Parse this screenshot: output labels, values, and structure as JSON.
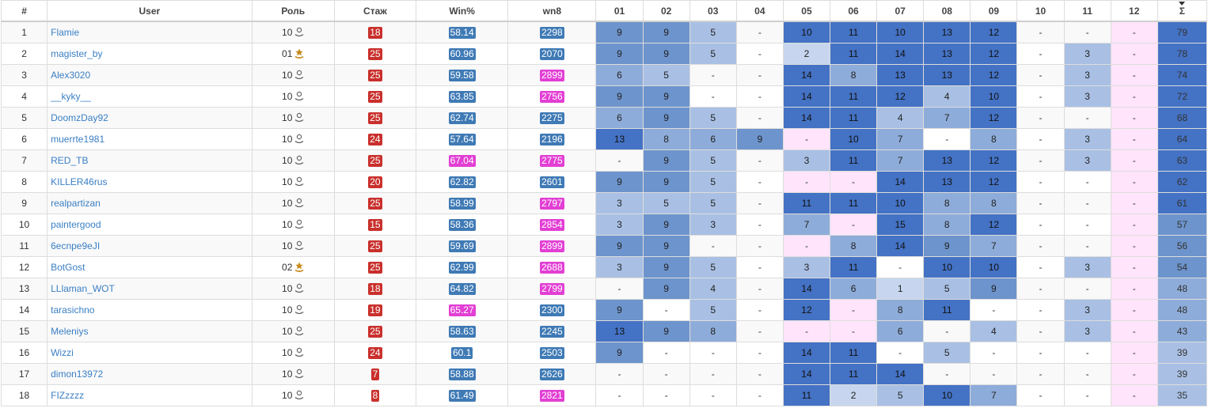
{
  "headers": [
    "#",
    "User",
    "Роль",
    "Стаж",
    "Win%",
    "wn8",
    "01",
    "02",
    "03",
    "04",
    "05",
    "06",
    "07",
    "08",
    "09",
    "10",
    "11",
    "12",
    "Σ"
  ],
  "colors": {
    "stazh_red": "#c9302c",
    "win_blue": "#3f7ab5",
    "win_pink": "#e23fd4",
    "wn8_blue": "#3f7ab5",
    "wn8_pink": "#e23fd4",
    "rank_gold": "#c68a1a",
    "pink_cell": "#ffe4fb",
    "blue_scale": [
      "#ffffff",
      "#c7d6ee",
      "#a9c0e4",
      "#8eacd9",
      "#6d94cc",
      "#4472c4"
    ]
  },
  "rows": [
    {
      "num": "1",
      "user": "Flamie",
      "role": "10",
      "role_icon": "soldier-icon",
      "stazh": "18",
      "win": "58.14",
      "win_hl": false,
      "wn8": "2298",
      "wn8_hl": false,
      "cells": [
        "9",
        "9",
        "5",
        "-",
        "10",
        "11",
        "10",
        "13",
        "12",
        "-",
        "-",
        "-"
      ],
      "total": "79"
    },
    {
      "num": "2",
      "user": "magister_by",
      "role": "01",
      "role_icon": "commander-star-icon",
      "stazh": "25",
      "win": "60.96",
      "win_hl": false,
      "wn8": "2070",
      "wn8_hl": false,
      "cells": [
        "9",
        "9",
        "5",
        "-",
        "2",
        "11",
        "14",
        "13",
        "12",
        "-",
        "3",
        "-"
      ],
      "total": "78"
    },
    {
      "num": "3",
      "user": "Alex3020",
      "role": "10",
      "role_icon": "soldier-icon",
      "stazh": "25",
      "win": "59.58",
      "win_hl": false,
      "wn8": "2899",
      "wn8_hl": true,
      "cells": [
        "6",
        "5",
        "-",
        "-",
        "14",
        "8",
        "13",
        "13",
        "12",
        "-",
        "3",
        "-"
      ],
      "total": "74"
    },
    {
      "num": "4",
      "user": "__kyky__",
      "role": "10",
      "role_icon": "soldier-icon",
      "stazh": "25",
      "win": "63.85",
      "win_hl": false,
      "wn8": "2756",
      "wn8_hl": true,
      "cells": [
        "9",
        "9",
        "-",
        "-",
        "14",
        "11",
        "12",
        "4",
        "10",
        "-",
        "3",
        "-"
      ],
      "total": "72"
    },
    {
      "num": "5",
      "user": "DoomzDay92",
      "role": "10",
      "role_icon": "soldier-icon",
      "stazh": "25",
      "win": "62.74",
      "win_hl": false,
      "wn8": "2275",
      "wn8_hl": false,
      "cells": [
        "6",
        "9",
        "5",
        "-",
        "14",
        "11",
        "4",
        "7",
        "12",
        "-",
        "-",
        "-"
      ],
      "total": "68"
    },
    {
      "num": "6",
      "user": "muerrte1981",
      "role": "10",
      "role_icon": "soldier-icon",
      "stazh": "24",
      "win": "57.64",
      "win_hl": false,
      "wn8": "2196",
      "wn8_hl": false,
      "cells": [
        "13",
        "8",
        "6",
        "9",
        "-",
        "10",
        "7",
        "-",
        "8",
        "-",
        "3",
        "-"
      ],
      "total": "64"
    },
    {
      "num": "7",
      "user": "RED_TB",
      "role": "10",
      "role_icon": "soldier-icon",
      "stazh": "25",
      "win": "67.04",
      "win_hl": true,
      "wn8": "2775",
      "wn8_hl": true,
      "cells": [
        "-",
        "9",
        "5",
        "-",
        "3",
        "11",
        "7",
        "13",
        "12",
        "-",
        "3",
        "-"
      ],
      "total": "63"
    },
    {
      "num": "8",
      "user": "KILLER46rus",
      "role": "10",
      "role_icon": "soldier-icon",
      "stazh": "20",
      "win": "62.82",
      "win_hl": false,
      "wn8": "2601",
      "wn8_hl": false,
      "cells": [
        "9",
        "9",
        "5",
        "-",
        "-",
        "-",
        "14",
        "13",
        "12",
        "-",
        "-",
        "-"
      ],
      "total": "62"
    },
    {
      "num": "9",
      "user": "realpartizan",
      "role": "10",
      "role_icon": "soldier-icon",
      "stazh": "25",
      "win": "58.99",
      "win_hl": false,
      "wn8": "2797",
      "wn8_hl": true,
      "cells": [
        "3",
        "5",
        "5",
        "-",
        "11",
        "11",
        "10",
        "8",
        "8",
        "-",
        "-",
        "-"
      ],
      "total": "61"
    },
    {
      "num": "10",
      "user": "paintergood",
      "role": "10",
      "role_icon": "soldier-icon",
      "stazh": "15",
      "win": "58.36",
      "win_hl": false,
      "wn8": "2854",
      "wn8_hl": true,
      "cells": [
        "3",
        "9",
        "3",
        "-",
        "7",
        "-",
        "15",
        "8",
        "12",
        "-",
        "-",
        "-"
      ],
      "total": "57"
    },
    {
      "num": "11",
      "user": "6ecnpe9eJI",
      "role": "10",
      "role_icon": "soldier-icon",
      "stazh": "25",
      "win": "59.69",
      "win_hl": false,
      "wn8": "2899",
      "wn8_hl": true,
      "cells": [
        "9",
        "9",
        "-",
        "-",
        "-",
        "8",
        "14",
        "9",
        "7",
        "-",
        "-",
        "-"
      ],
      "total": "56"
    },
    {
      "num": "12",
      "user": "BotGost",
      "role": "02",
      "role_icon": "commander-star-icon",
      "stazh": "25",
      "win": "62.99",
      "win_hl": false,
      "wn8": "2688",
      "wn8_hl": true,
      "cells": [
        "3",
        "9",
        "5",
        "-",
        "3",
        "11",
        "-",
        "10",
        "10",
        "-",
        "3",
        "-"
      ],
      "total": "54"
    },
    {
      "num": "13",
      "user": "LLlaman_WOT",
      "role": "10",
      "role_icon": "soldier-icon",
      "stazh": "18",
      "win": "64.82",
      "win_hl": false,
      "wn8": "2799",
      "wn8_hl": true,
      "cells": [
        "-",
        "9",
        "4",
        "-",
        "14",
        "6",
        "1",
        "5",
        "9",
        "-",
        "-",
        "-"
      ],
      "total": "48"
    },
    {
      "num": "14",
      "user": "tarasichno",
      "role": "10",
      "role_icon": "soldier-icon",
      "stazh": "19",
      "win": "65.27",
      "win_hl": true,
      "wn8": "2300",
      "wn8_hl": false,
      "cells": [
        "9",
        "-",
        "5",
        "-",
        "12",
        "-",
        "8",
        "11",
        "-",
        "-",
        "3",
        "-"
      ],
      "total": "48"
    },
    {
      "num": "15",
      "user": "Meleniys",
      "role": "10",
      "role_icon": "soldier-icon",
      "stazh": "25",
      "win": "58.63",
      "win_hl": false,
      "wn8": "2245",
      "wn8_hl": false,
      "cells": [
        "13",
        "9",
        "8",
        "-",
        "-",
        "-",
        "6",
        "-",
        "4",
        "-",
        "3",
        "-"
      ],
      "total": "43"
    },
    {
      "num": "16",
      "user": "Wizzi",
      "role": "10",
      "role_icon": "soldier-icon",
      "stazh": "24",
      "win": "60.1",
      "win_hl": false,
      "wn8": "2503",
      "wn8_hl": false,
      "cells": [
        "9",
        "-",
        "-",
        "-",
        "14",
        "11",
        "-",
        "5",
        "-",
        "-",
        "-",
        "-"
      ],
      "total": "39"
    },
    {
      "num": "17",
      "user": "dimon13972",
      "role": "10",
      "role_icon": "soldier-icon",
      "stazh": "7",
      "win": "58.88",
      "win_hl": false,
      "wn8": "2626",
      "wn8_hl": false,
      "cells": [
        "-",
        "-",
        "-",
        "-",
        "14",
        "11",
        "14",
        "-",
        "-",
        "-",
        "-",
        "-"
      ],
      "total": "39"
    },
    {
      "num": "18",
      "user": "FIZzzzz",
      "role": "10",
      "role_icon": "soldier-icon",
      "stazh": "8",
      "win": "61.49",
      "win_hl": false,
      "wn8": "2821",
      "wn8_hl": true,
      "cells": [
        "-",
        "-",
        "-",
        "-",
        "11",
        "2",
        "5",
        "10",
        "7",
        "-",
        "-",
        "-"
      ],
      "total": "35"
    }
  ]
}
